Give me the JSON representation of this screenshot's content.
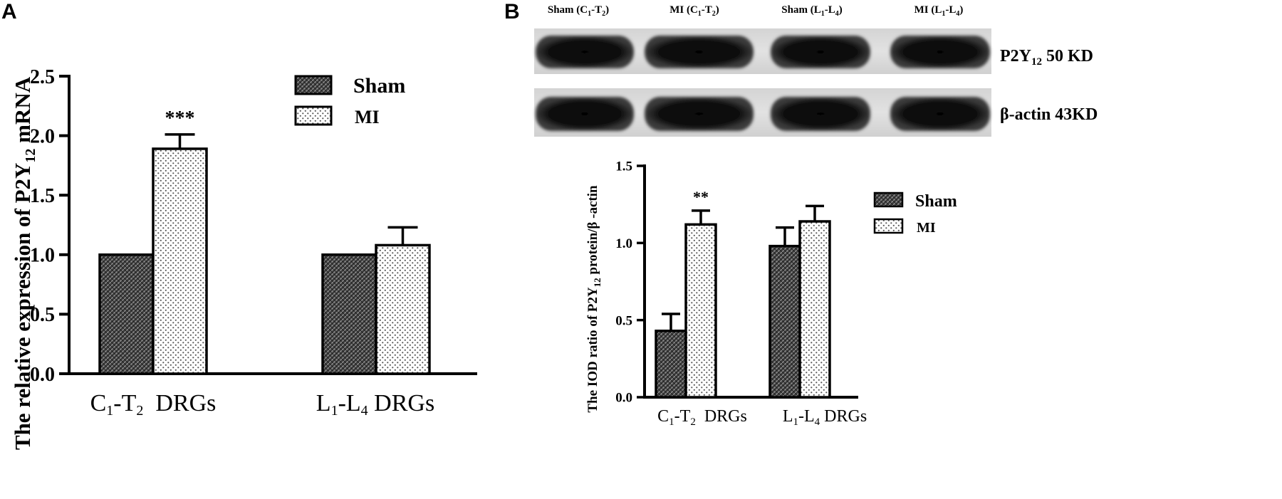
{
  "colors": {
    "sham_fill": "#3a3a3a",
    "mi_fill": "#ffffff",
    "axis": "#000000"
  },
  "panel_a": {
    "letter": "A",
    "sig": "***",
    "ylabel": {
      "pre": "The relative expression of P2Y",
      "sub": "12",
      "post": " mRNA"
    },
    "categories": [
      {
        "c": "C",
        "c_sub": "1",
        "mid": "-T",
        "m_sub": "2",
        "tail": "  DRGs"
      },
      {
        "c": "L",
        "c_sub": "1",
        "mid": "-L",
        "m_sub": "4",
        "tail": " DRGs"
      }
    ],
    "legend": [
      "Sham",
      "MI"
    ]
  },
  "panel_b": {
    "letter": "B",
    "sig": "**",
    "lanes": [
      {
        "name": "Sham",
        "paren_open": "  (C",
        "s1": "1",
        "dash": "-T",
        "s2": "2",
        "close": ")"
      },
      {
        "name": "MI",
        "paren_open": " (C",
        "s1": "1",
        "dash": "-T",
        "s2": "2",
        "close": ")"
      },
      {
        "name": "Sham",
        "paren_open": "  (L",
        "s1": "1",
        "dash": "-L",
        "s2": "4",
        "close": ")"
      },
      {
        "name": "MI",
        "paren_open": " (L",
        "s1": "1",
        "dash": "-L",
        "s2": "4",
        "close": ")"
      }
    ],
    "blot_labels": [
      {
        "pre": "P2Y",
        "sub": "12",
        "post": " 50 KD"
      },
      {
        "pre": "β-actin 43KD",
        "sub": "",
        "post": ""
      }
    ],
    "ylabel": {
      "pre": "The IOD ratio of P2Y",
      "sub": "12",
      "post": " protein/β -actin"
    },
    "categories": [
      {
        "c": "C",
        "c_sub": "1",
        "mid": "-T",
        "m_sub": "2",
        "tail": "  DRGs"
      },
      {
        "c": "L",
        "c_sub": "1",
        "mid": "-L",
        "m_sub": "4",
        "tail": " DRGs"
      }
    ],
    "legend": [
      "Sham",
      "MI"
    ]
  },
  "chart_data": [
    {
      "type": "bar",
      "panel": "A",
      "categories": [
        "C1-T2 DRGs",
        "L1-L4 DRGs"
      ],
      "series": [
        {
          "name": "Sham",
          "values": [
            1.0,
            1.0
          ],
          "errors": [
            0,
            0
          ]
        },
        {
          "name": "MI",
          "values": [
            1.89,
            1.08
          ],
          "errors": [
            0.12,
            0.15
          ]
        }
      ],
      "ylabel": "The relative expression of P2Y12 mRNA",
      "ylim": [
        0,
        2.5
      ],
      "yticks": [
        "0.0",
        "0.5",
        "1.0",
        "1.5",
        "2.0",
        "2.5"
      ],
      "annotations": [
        {
          "category": "C1-T2 DRGs",
          "series": "MI",
          "text": "***"
        }
      ],
      "legend_position": "top-right"
    },
    {
      "type": "bar",
      "panel": "B",
      "categories": [
        "C1-T2 DRGs",
        "L1-L4 DRGs"
      ],
      "series": [
        {
          "name": "Sham",
          "values": [
            0.43,
            0.98
          ],
          "errors": [
            0.11,
            0.12
          ]
        },
        {
          "name": "MI",
          "values": [
            1.12,
            1.14
          ],
          "errors": [
            0.09,
            0.1
          ]
        }
      ],
      "ylabel": "The IOD ratio of P2Y12 protein/β -actin",
      "ylim": [
        0,
        1.5
      ],
      "yticks": [
        "0.0",
        "0.5",
        "1.0",
        "1.5"
      ],
      "annotations": [
        {
          "category": "C1-T2 DRGs",
          "series": "MI",
          "text": "**"
        }
      ],
      "legend_position": "top-right"
    }
  ]
}
